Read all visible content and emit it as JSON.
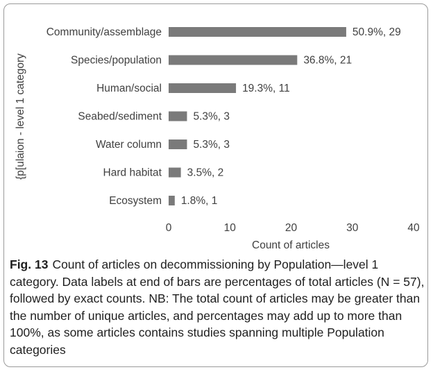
{
  "chart_data": {
    "type": "bar",
    "orientation": "horizontal",
    "categories": [
      "Community/assemblage",
      "Species/population",
      "Human/social",
      "Seabed/sediment",
      "Water column",
      "Hard habitat",
      "Ecosystem"
    ],
    "values": [
      29,
      21,
      11,
      3,
      3,
      2,
      1
    ],
    "data_labels": [
      "50.9%, 29",
      "36.8%, 21",
      "19.3%, 11",
      "5.3%, 3",
      "5.3%, 3",
      "3.5%, 2",
      "1.8%, 1"
    ],
    "xlabel": "Count of articles",
    "ylabel": "{p[ulaion - level 1 category",
    "xlim": [
      0,
      40
    ],
    "xticks": [
      0,
      10,
      20,
      30,
      40
    ],
    "grid": false,
    "bar_color": "#7a7a7a"
  },
  "caption": {
    "label": "Fig. 13",
    "text": "Count of articles on decommissioning by Population—level 1 category. Data labels at end of bars are percentages of total articles (N = 57), followed by exact counts. NB: The total count of articles may be greater than the number of unique articles, and percentages may add up to more than 100%, as some articles contains studies spanning multiple Population categories"
  }
}
